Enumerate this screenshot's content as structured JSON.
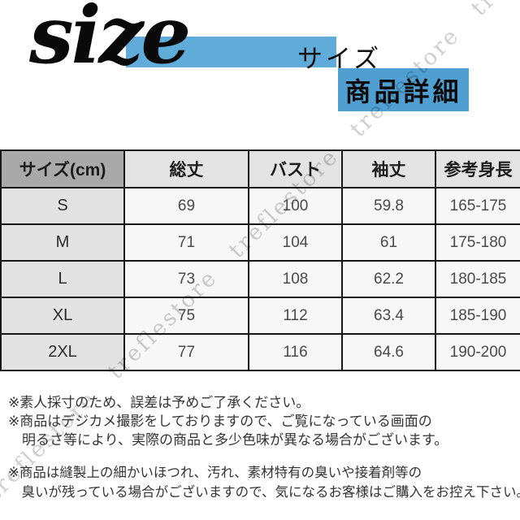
{
  "page": {
    "background": "#ffffff",
    "accent_blue_bar": "#5fabd9",
    "accent_blue_badge": "#4f9fd2",
    "watermark_color": "#c6c6c6",
    "table_header_dark_bg": "#a9a9a9",
    "table_header_bg": "#e3e3e3",
    "table_label_col_bg": "#e2e2e2",
    "table_cell_bg": "#f7f7f7"
  },
  "header": {
    "size_script": "size",
    "size_label_jp": "サイズ",
    "detail_badge": "商品詳細"
  },
  "size_table": {
    "columns": [
      "サイズ(cm)",
      "総丈",
      "バスト",
      "袖丈",
      "参考身長"
    ],
    "rows": [
      [
        "S",
        "69",
        "100",
        "59.8",
        "165-175"
      ],
      [
        "M",
        "71",
        "104",
        "61",
        "175-180"
      ],
      [
        "L",
        "73",
        "108",
        "62.2",
        "180-185"
      ],
      [
        "XL",
        "75",
        "112",
        "63.4",
        "185-190"
      ],
      [
        "2XL",
        "77",
        "116",
        "64.6",
        "190-200"
      ]
    ]
  },
  "notes": {
    "block1": [
      "※素人採寸のため、誤差は予めご了承ください。",
      "※商品はデジカメ撮影をしておりますので、ご覧になっている画面の",
      "　明るさ等により、実際の商品と多少色味が異なる場合がございます。"
    ],
    "block2": [
      "※商品は縫製上の細かいほつれ、汚れ、素材特有の臭いや接着剤等の",
      "　臭いが残っている場合がございますので、気になるお客様はご購入をお控え下さい。"
    ]
  },
  "watermark": {
    "text": "treflestore",
    "repeated": "treflestore  treflestore  treflestore  treflestore  treflestore"
  }
}
